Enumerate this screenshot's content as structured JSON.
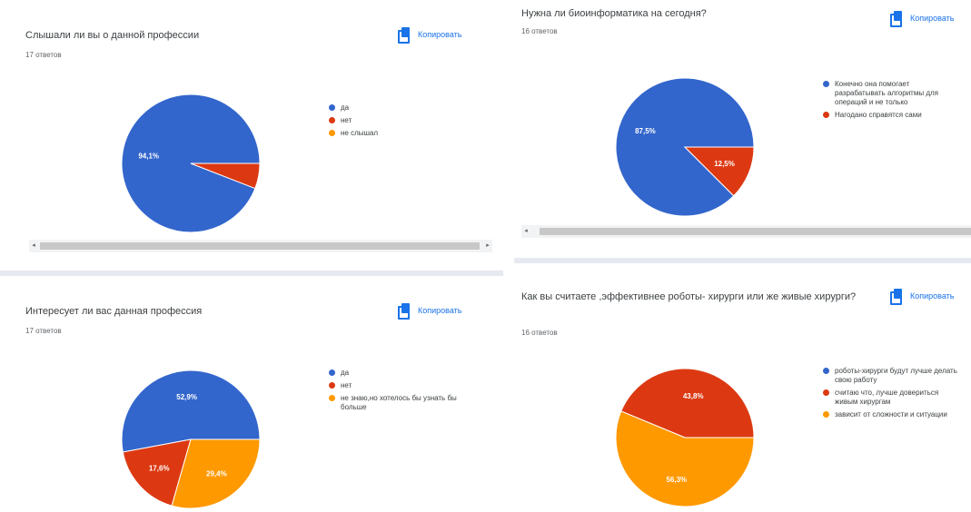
{
  "copy_label": "Копировать",
  "colors": {
    "blue": "#3366cc",
    "red": "#dc3912",
    "orange": "#ff9900",
    "accent": "#1a73e8"
  },
  "charts": [
    {
      "title": "Слышали ли вы о данной профессии",
      "count": "17 ответов",
      "legend": [
        "да",
        "нет",
        "не слышал"
      ]
    },
    {
      "title": "Нужна ли биоинформатика на сегодня?",
      "count": "16 ответов",
      "legend": [
        "Конечно она помогает разрабатывать алгоритмы для операций и не только",
        "Нагодано справятся сами"
      ]
    },
    {
      "title": "Интересует ли вас данная профессия",
      "count": "17 ответов",
      "legend": [
        "да",
        "нет",
        "не знаю,но хотелось бы узнать бы больше"
      ]
    },
    {
      "title": "Как вы считаете ,эффективнее роботы- хирурги или же живые хирурги?",
      "count": "16 ответов",
      "legend": [
        "роботы-хирурги будут лучше делать свою работу",
        "считаю что, лучше довериться живым хирургам",
        "зависит от сложности и ситуации"
      ]
    }
  ],
  "chart_data": [
    {
      "type": "pie",
      "title": "Слышали ли вы о данной профессии",
      "series": [
        {
          "name": "да",
          "value": 94.1,
          "label": "94,1%",
          "color": "#3366cc"
        },
        {
          "name": "нет",
          "value": 5.9,
          "label": "",
          "color": "#dc3912"
        },
        {
          "name": "не слышал",
          "value": 0,
          "label": "",
          "color": "#ff9900"
        }
      ],
      "legend_position": "right"
    },
    {
      "type": "pie",
      "title": "Нужна ли биоинформатика на сегодня?",
      "series": [
        {
          "name": "Конечно она помогает разрабатывать алгоритмы для операций и не только",
          "value": 87.5,
          "label": "87,5%",
          "color": "#3366cc"
        },
        {
          "name": "Нагодано справятся сами",
          "value": 12.5,
          "label": "12,5%",
          "color": "#dc3912"
        }
      ],
      "legend_position": "right"
    },
    {
      "type": "pie",
      "title": "Интересует ли вас данная профессия",
      "series": [
        {
          "name": "да",
          "value": 52.9,
          "label": "52,9%",
          "color": "#3366cc"
        },
        {
          "name": "нет",
          "value": 17.6,
          "label": "17,6%",
          "color": "#dc3912"
        },
        {
          "name": "не знаю,но хотелось бы узнать бы больше",
          "value": 29.4,
          "label": "29,4%",
          "color": "#ff9900"
        }
      ],
      "legend_position": "right"
    },
    {
      "type": "pie",
      "title": "Как вы считаете ,эффективнее роботы- хирурги или же живые хирурги?",
      "series": [
        {
          "name": "роботы-хирурги будут лучше делать свою работу",
          "value": 0,
          "label": "",
          "color": "#3366cc"
        },
        {
          "name": "считаю что, лучше довериться живым хирургам",
          "value": 43.8,
          "label": "43,8%",
          "color": "#dc3912"
        },
        {
          "name": "зависит от сложности и ситуации",
          "value": 56.3,
          "label": "56,3%",
          "color": "#ff9900"
        }
      ],
      "legend_position": "right"
    }
  ]
}
